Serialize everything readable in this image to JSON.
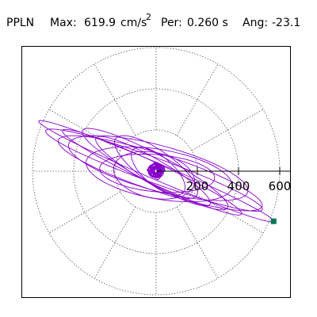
{
  "header": {
    "station": "PPLN",
    "max_label": "Max:",
    "max_value": "619.9",
    "max_unit": "cm/s",
    "max_unit_exp": "2",
    "per_label": "Per:",
    "per_value": "0.260 s",
    "ang_label": "Ang:",
    "ang_value": "-23.1"
  },
  "chart_data": {
    "type": "polar-orbit",
    "radial_ticks": [
      200,
      400,
      600
    ],
    "radial_tick_labels": [
      "200",
      "400",
      "600"
    ],
    "rings": [
      200,
      400,
      600
    ],
    "angular_spokes_deg": [
      0,
      30,
      60,
      90,
      120,
      150,
      180,
      210,
      240,
      270,
      300,
      330
    ],
    "grid": true,
    "max_radius": 600,
    "orbits": [
      {
        "a": 619.9,
        "b": 40,
        "angle": -23.1,
        "cx": 0,
        "cy": 0
      },
      {
        "a": 560,
        "b": 60,
        "angle": -20,
        "cx": -10,
        "cy": 5
      },
      {
        "a": 520,
        "b": 90,
        "angle": -18,
        "cx": 20,
        "cy": -10
      },
      {
        "a": 480,
        "b": 50,
        "angle": -25,
        "cx": -20,
        "cy": -5
      },
      {
        "a": 450,
        "b": 110,
        "angle": -15,
        "cx": 10,
        "cy": 15
      },
      {
        "a": 400,
        "b": 70,
        "angle": -28,
        "cx": -5,
        "cy": 10
      },
      {
        "a": 360,
        "b": 120,
        "angle": -10,
        "cx": 15,
        "cy": -15
      },
      {
        "a": 320,
        "b": 60,
        "angle": -30,
        "cx": -15,
        "cy": 0
      },
      {
        "a": 280,
        "b": 90,
        "angle": -5,
        "cx": 5,
        "cy": -10
      },
      {
        "a": 240,
        "b": 80,
        "angle": -35,
        "cx": 0,
        "cy": 20
      },
      {
        "a": 200,
        "b": 110,
        "angle": -12,
        "cx": -10,
        "cy": -20
      },
      {
        "a": 160,
        "b": 70,
        "angle": -40,
        "cx": 10,
        "cy": 0
      }
    ],
    "clusters": [
      {
        "r": 45,
        "n": 14
      },
      {
        "r": 25,
        "n": 10
      }
    ],
    "max_point": {
      "amplitude": 619.9,
      "angle_deg": -23.1
    },
    "colors": {
      "orbit": "#8800cc",
      "grid": "#555555",
      "axis": "#000000",
      "marker": "#007755"
    }
  }
}
